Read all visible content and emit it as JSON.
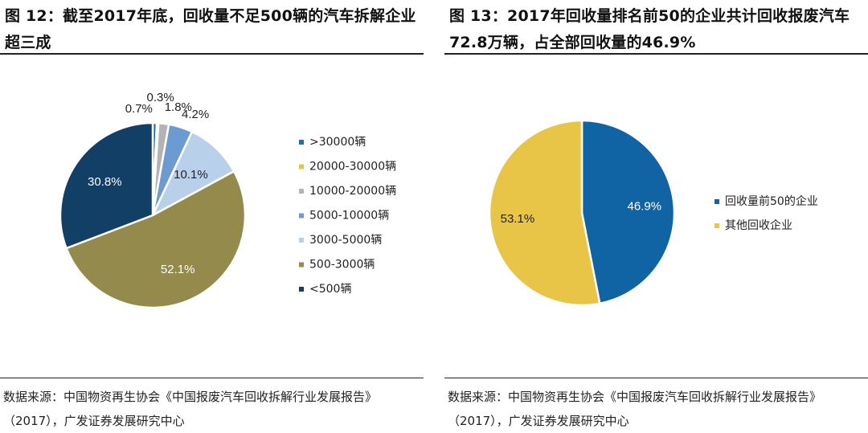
{
  "left": {
    "title": "图 12：截至2017年底，回收量不足500辆的汽车拆解企业超三成",
    "source": "数据来源：中国物资再生协会《中国报废汽车回收拆解行业发展报告》（2017），广发证券发展研究中心",
    "chart_data": {
      "type": "pie",
      "title": "截至2017年底，回收量不足500辆的汽车拆解企业超三成",
      "categories": [
        ">30000辆",
        "20000-30000辆",
        "10000-20000辆",
        "5000-10000辆",
        "3000-5000辆",
        "500-3000辆",
        "<500辆"
      ],
      "values": [
        0.7,
        0.3,
        1.8,
        4.2,
        10.1,
        52.1,
        30.8
      ],
      "labels": [
        "0.7%",
        "0.3%",
        "1.8%",
        "4.2%",
        "10.1%",
        "52.1%",
        "30.8%"
      ],
      "colors": [
        "#1f6fa8",
        "#e8c547",
        "#b3b3b3",
        "#6b9bd1",
        "#b8d0ea",
        "#938a4c",
        "#123f66"
      ],
      "start_angle": "12 o'clock, clockwise",
      "legend": "right"
    }
  },
  "right": {
    "title": "图 13：2017年回收量排名前50的企业共计回收报废汽车72.8万辆，占全部回收量的46.9%",
    "source": "数据来源：中国物资再生协会《中国报废汽车回收拆解行业发展报告》（2017），广发证券发展研究中心",
    "chart_data": {
      "type": "pie",
      "title": "2017年回收量排名前50的企业共计回收报废汽车72.8万辆，占全部回收量的46.9%",
      "categories": [
        "回收量前50的企业",
        "其他回收企业"
      ],
      "values": [
        46.9,
        53.1
      ],
      "labels": [
        "46.9%",
        "53.1%"
      ],
      "colors": [
        "#1064a3",
        "#e8c547"
      ],
      "start_angle": "12 o'clock, clockwise",
      "legend": "right"
    }
  }
}
